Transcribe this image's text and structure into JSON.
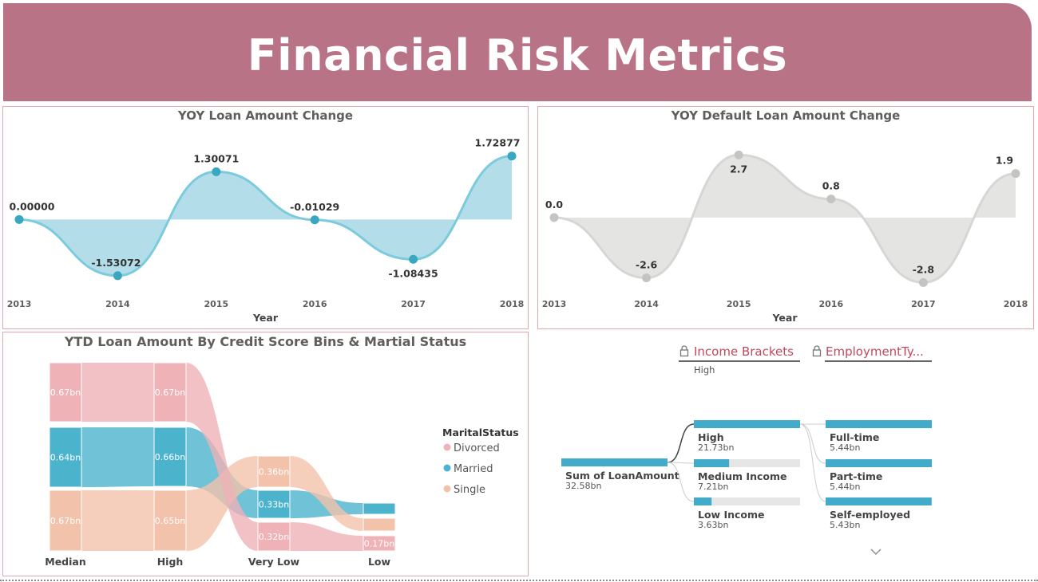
{
  "header": {
    "title": "Financial Risk Metrics"
  },
  "colors": {
    "header_bg": "#b87486",
    "loan_line": "#7ccbdc",
    "loan_fill": "#b3dde8",
    "loan_point": "#3aa7c2",
    "default_line": "#d6d6d4",
    "default_fill": "#e4e5e2",
    "default_point": "#c4c4c2",
    "divorced": "#eeb2b7",
    "married": "#4cb3cd",
    "single": "#f3c2ab",
    "bar": "#41abc9",
    "bar_track": "#e6e6e6"
  },
  "chart_data": [
    {
      "type": "area",
      "title": "YOY Loan Amount Change",
      "xlabel": "Year",
      "x": [
        "2013",
        "2014",
        "2015",
        "2016",
        "2017",
        "2018"
      ],
      "values": [
        0.0,
        -1.53072,
        1.30071,
        -0.01029,
        -1.08435,
        1.72877
      ],
      "labels": [
        "0.00000",
        "-1.53072",
        "1.30071",
        "-0.01029",
        "-1.08435",
        "1.72877"
      ],
      "ylim": [
        -1.6,
        2.2
      ],
      "grid": false
    },
    {
      "type": "area",
      "title": "YOY Default Loan Amount Change",
      "xlabel": "Year",
      "x": [
        "2013",
        "2014",
        "2015",
        "2016",
        "2017",
        "2018"
      ],
      "values": [
        0.0,
        -2.6,
        2.7,
        0.8,
        -2.8,
        1.9
      ],
      "labels": [
        "0.0",
        "-2.6",
        "2.7",
        "0.8",
        "-2.8",
        "1.9"
      ],
      "ylim": [
        -3.2,
        3.4
      ],
      "grid": false
    },
    {
      "type": "sankey",
      "title": "YTD Loan Amount By Credit Score Bins & Martial Status",
      "categories": [
        "Median",
        "High",
        "Very Low",
        "Low"
      ],
      "legend_title": "MaritalStatus",
      "legend_position": "right",
      "series": [
        {
          "name": "Divorced",
          "values": [
            0.67,
            0.67,
            0.32,
            0.17
          ],
          "labels": [
            "0.67bn",
            "0.67bn",
            "0.32bn",
            "0.17bn"
          ]
        },
        {
          "name": "Married",
          "values": [
            0.64,
            0.66,
            0.33,
            0.1
          ],
          "labels": [
            "0.64bn",
            "0.66bn",
            "0.33bn",
            ""
          ]
        },
        {
          "name": "Single",
          "values": [
            0.67,
            0.65,
            0.36,
            0.1
          ],
          "labels": [
            "0.67bn",
            "0.65bn",
            "0.36bn",
            ""
          ]
        }
      ]
    },
    {
      "type": "decomposition_tree",
      "levels": [
        {
          "title": "Income Brackets",
          "selected": "High"
        },
        {
          "title": "EmploymentTy..."
        }
      ],
      "root": {
        "label": "Sum of LoanAmount",
        "value_label": "32.58bn",
        "value": 32.58
      },
      "level1": [
        {
          "label": "High",
          "value_label": "21.73bn",
          "value": 21.73
        },
        {
          "label": "Medium Income",
          "value_label": "7.21bn",
          "value": 7.21
        },
        {
          "label": "Low Income",
          "value_label": "3.63bn",
          "value": 3.63
        }
      ],
      "level2": [
        {
          "label": "Full-time",
          "value_label": "5.44bn",
          "value": 5.44
        },
        {
          "label": "Part-time",
          "value_label": "5.44bn",
          "value": 5.44
        },
        {
          "label": "Self-employed",
          "value_label": "5.43bn",
          "value": 5.43
        }
      ]
    }
  ]
}
